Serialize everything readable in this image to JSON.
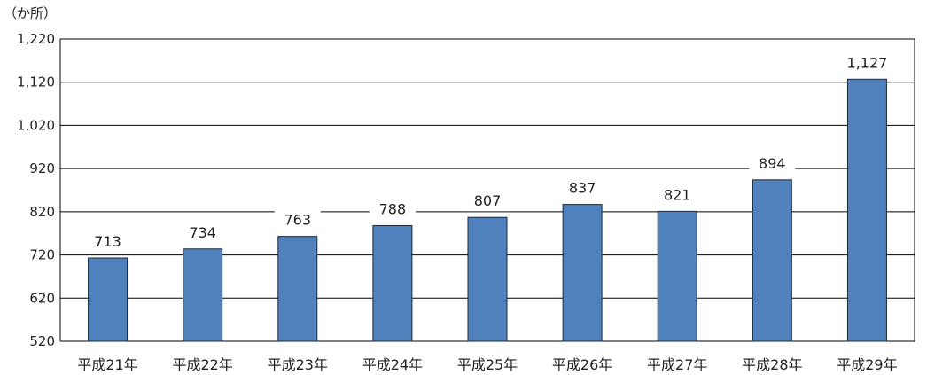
{
  "chart_data": {
    "type": "bar",
    "unit": "（か所）",
    "categories": [
      "平成21年",
      "平成22年",
      "平成23年",
      "平成24年",
      "平成25年",
      "平成26年",
      "平成27年",
      "平成28年",
      "平成29年"
    ],
    "values": [
      713,
      734,
      763,
      788,
      807,
      837,
      821,
      894,
      1127
    ],
    "value_labels": [
      "713",
      "734",
      "763",
      "788",
      "807",
      "837",
      "821",
      "894",
      "1,127"
    ],
    "ylim": [
      520,
      1220
    ],
    "yticks": [
      520,
      620,
      720,
      820,
      920,
      1020,
      1120,
      1220
    ],
    "ytick_labels": [
      "520",
      "620",
      "720",
      "820",
      "920",
      "1,020",
      "1,120",
      "1,220"
    ],
    "grid": true,
    "bar_color": "#4f81bd",
    "bar_edge_color": "#1f2a3a"
  }
}
